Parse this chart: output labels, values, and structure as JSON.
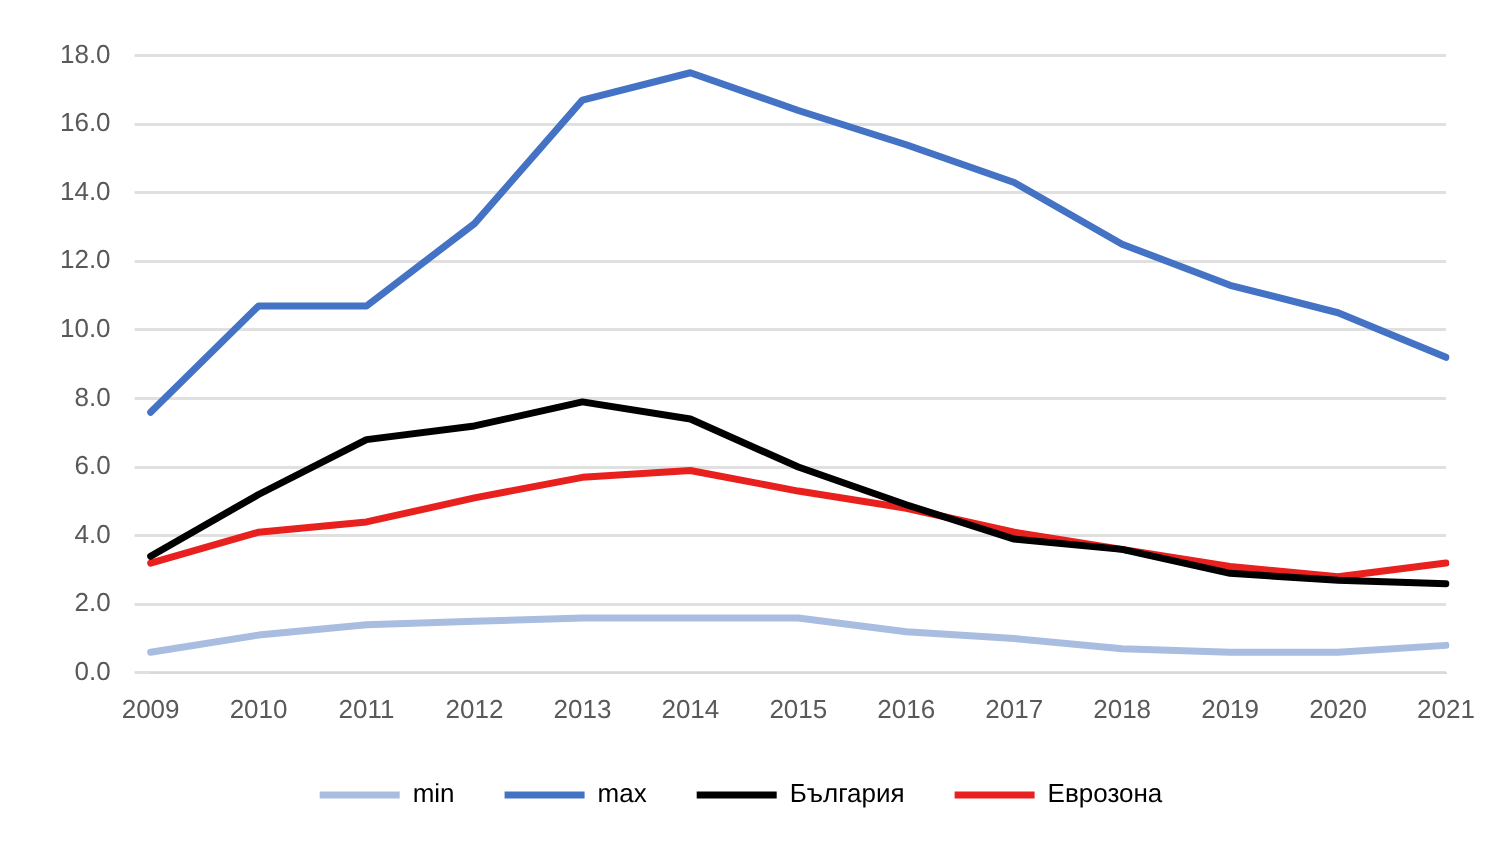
{
  "chart_data": {
    "type": "line",
    "categories": [
      "2009",
      "2010",
      "2011",
      "2012",
      "2013",
      "2014",
      "2015",
      "2016",
      "2017",
      "2018",
      "2019",
      "2020",
      "2021"
    ],
    "series": [
      {
        "name": "min",
        "color": "#a9bde0",
        "values": [
          0.6,
          1.1,
          1.4,
          1.5,
          1.6,
          1.6,
          1.6,
          1.2,
          1.0,
          0.7,
          0.6,
          0.6,
          0.8
        ]
      },
      {
        "name": "max",
        "color": "#4472c4",
        "values": [
          7.6,
          10.7,
          10.7,
          13.1,
          16.7,
          17.5,
          16.4,
          15.4,
          14.3,
          12.5,
          11.3,
          10.5,
          9.2
        ]
      },
      {
        "name": "България",
        "color": "#000000",
        "values": [
          3.4,
          5.2,
          6.8,
          7.2,
          7.9,
          7.4,
          6.0,
          4.9,
          3.9,
          3.6,
          2.9,
          2.7,
          2.6
        ]
      },
      {
        "name": "Еврозона",
        "color": "#e8211e",
        "values": [
          3.2,
          4.1,
          4.4,
          5.1,
          5.7,
          5.9,
          5.3,
          4.8,
          4.1,
          3.6,
          3.1,
          2.8,
          3.2
        ]
      }
    ],
    "ylim": [
      0,
      18
    ],
    "yticks": [
      {
        "value": 0,
        "label": "0.0"
      },
      {
        "value": 2,
        "label": "2.0"
      },
      {
        "value": 4,
        "label": "4.0"
      },
      {
        "value": 6,
        "label": "6.0"
      },
      {
        "value": 8,
        "label": "8.0"
      },
      {
        "value": 10,
        "label": "10.0"
      },
      {
        "value": 12,
        "label": "12.0"
      },
      {
        "value": 14,
        "label": "14.0"
      },
      {
        "value": 16,
        "label": "16.0"
      },
      {
        "value": 18,
        "label": "18.0"
      }
    ],
    "grid": "y",
    "legend": "bottom",
    "marker": "none",
    "line_style": "solid"
  }
}
